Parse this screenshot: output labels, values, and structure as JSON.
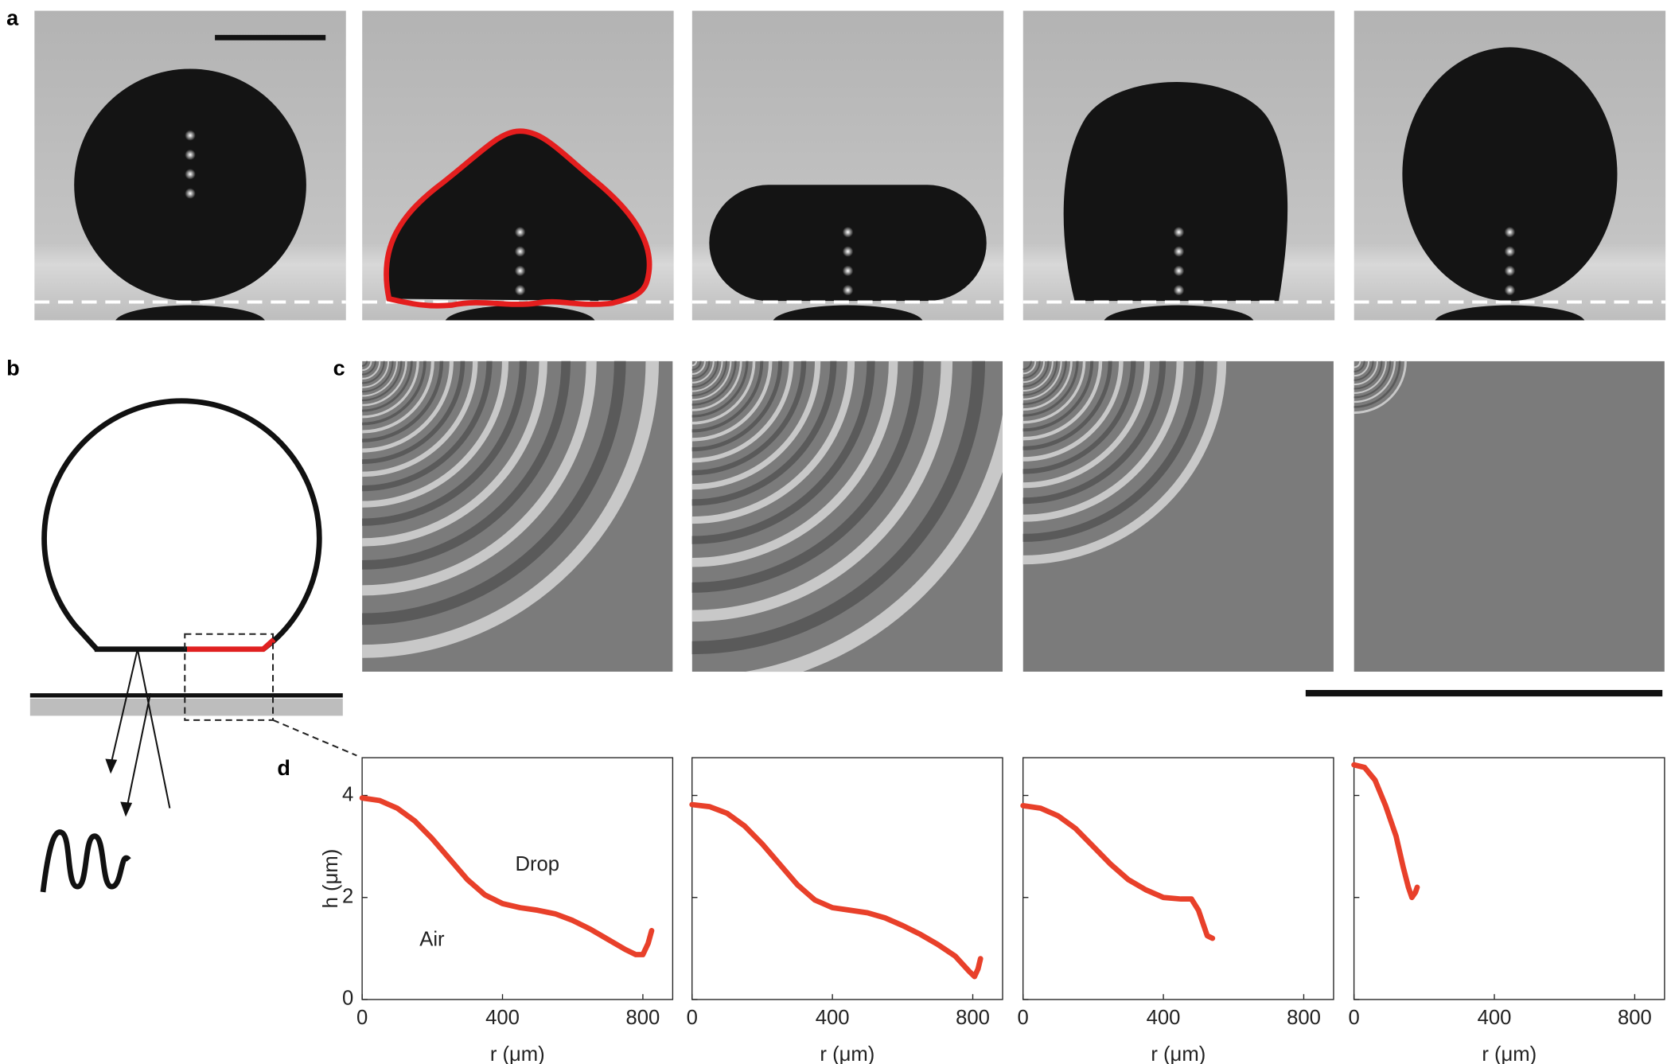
{
  "panel_labels": [
    "a",
    "b",
    "c",
    "d"
  ],
  "chart_data": [
    {
      "type": "line",
      "color": "#e8402a",
      "x": [
        0,
        50,
        100,
        150,
        200,
        250,
        300,
        350,
        400,
        450,
        500,
        550,
        600,
        650,
        700,
        750,
        780,
        800,
        815,
        825
      ],
      "values": [
        3.95,
        3.9,
        3.75,
        3.5,
        3.15,
        2.75,
        2.35,
        2.05,
        1.88,
        1.8,
        1.75,
        1.68,
        1.55,
        1.38,
        1.18,
        0.98,
        0.88,
        0.88,
        1.1,
        1.35
      ],
      "xlim": [
        0,
        885
      ],
      "ylim": [
        0,
        4.74
      ],
      "xticks": [
        0,
        400,
        800
      ],
      "yticks": [
        0,
        2,
        4
      ],
      "xlabel": "r (μm)",
      "ylabel": "h (μm)",
      "annotations": [
        "Drop",
        "Air"
      ]
    },
    {
      "type": "line",
      "color": "#e8402a",
      "x": [
        0,
        50,
        100,
        150,
        200,
        250,
        300,
        350,
        400,
        450,
        500,
        550,
        600,
        650,
        700,
        750,
        790,
        805,
        815,
        822
      ],
      "values": [
        3.82,
        3.78,
        3.65,
        3.4,
        3.05,
        2.65,
        2.25,
        1.95,
        1.8,
        1.75,
        1.7,
        1.6,
        1.45,
        1.28,
        1.08,
        0.85,
        0.55,
        0.45,
        0.6,
        0.8
      ],
      "xlim": [
        0,
        885
      ],
      "ylim": [
        0,
        4.74
      ],
      "xticks": [
        0,
        400,
        800
      ],
      "yticks": [
        0,
        2,
        4
      ],
      "xlabel": "r (μm)"
    },
    {
      "type": "line",
      "color": "#e8402a",
      "x": [
        0,
        50,
        100,
        150,
        200,
        250,
        300,
        350,
        400,
        450,
        480,
        500,
        515,
        525,
        540
      ],
      "values": [
        3.8,
        3.75,
        3.6,
        3.35,
        3.0,
        2.65,
        2.35,
        2.15,
        2.0,
        1.97,
        1.97,
        1.75,
        1.45,
        1.25,
        1.2
      ],
      "xlim": [
        0,
        885
      ],
      "ylim": [
        0,
        4.74
      ],
      "xticks": [
        0,
        400,
        800
      ],
      "yticks": [
        0,
        2,
        4
      ],
      "xlabel": "r (μm)"
    },
    {
      "type": "line",
      "color": "#e8402a",
      "x": [
        0,
        30,
        60,
        90,
        120,
        140,
        155,
        165,
        175,
        180
      ],
      "values": [
        4.6,
        4.55,
        4.3,
        3.8,
        3.2,
        2.6,
        2.2,
        2.0,
        2.1,
        2.2
      ],
      "xlim": [
        0,
        885
      ],
      "ylim": [
        0,
        4.74
      ],
      "xticks": [
        0,
        400,
        800
      ],
      "yticks": [
        0,
        2,
        4
      ],
      "xlabel": "r (μm)"
    }
  ]
}
